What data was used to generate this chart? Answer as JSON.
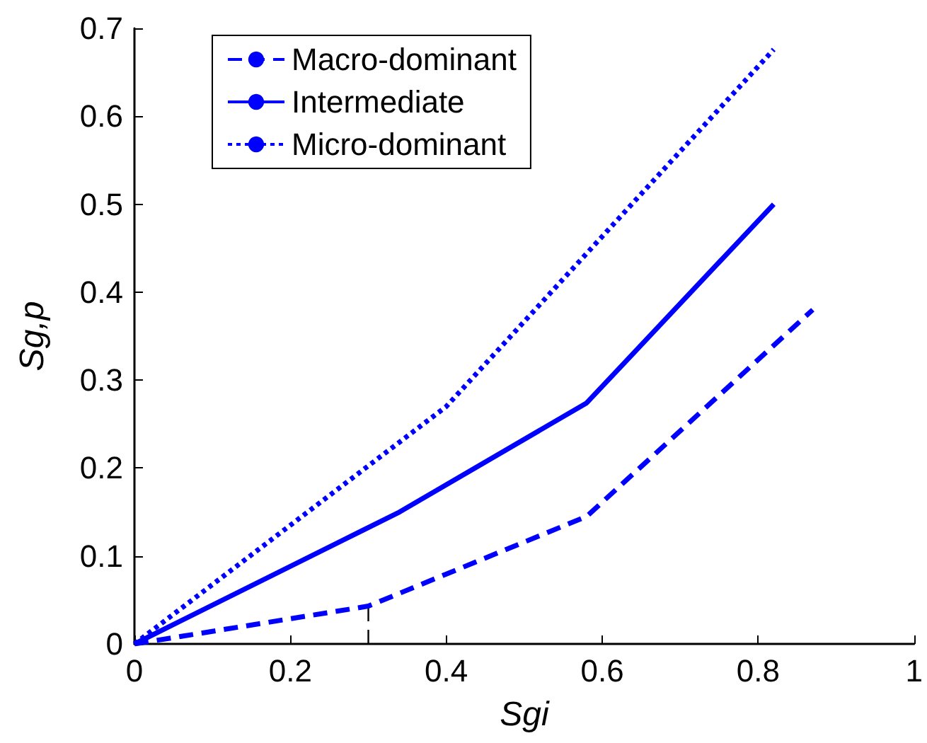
{
  "chart_data": {
    "type": "line",
    "xlabel": "Sgi",
    "ylabel": "Sg,p",
    "xlim": [
      0,
      1
    ],
    "xticks": [
      0,
      0.2,
      0.4,
      0.6,
      0.8,
      1
    ],
    "ylim": [
      0,
      0.7
    ],
    "yticks": [
      0,
      0.1,
      0.2,
      0.3,
      0.4,
      0.5,
      0.6,
      0.7
    ],
    "grid": false,
    "legend": "top left",
    "marker": "none",
    "series": [
      {
        "name": "Macro-dominant",
        "color": "#0000ff",
        "line_style": "dashed",
        "x": [
          0,
          0.3,
          0.58,
          0.87
        ],
        "values": [
          0,
          0.043,
          0.145,
          0.38
        ]
      },
      {
        "name": "Intermediate",
        "color": "#0000ff",
        "line_style": "solid",
        "x": [
          0,
          0.34,
          0.58,
          0.82
        ],
        "values": [
          0,
          0.15,
          0.274,
          0.5
        ]
      },
      {
        "name": "Micro-dominant",
        "color": "#0000ff",
        "line_style": "dotted",
        "x": [
          0,
          0.4,
          0.82
        ],
        "values": [
          0,
          0.27,
          0.676
        ]
      },
      {
        "color": "#000000",
        "line_style": "dashed",
        "x": [
          0.3,
          0.3
        ],
        "values": [
          0,
          0.043
        ]
      }
    ]
  }
}
